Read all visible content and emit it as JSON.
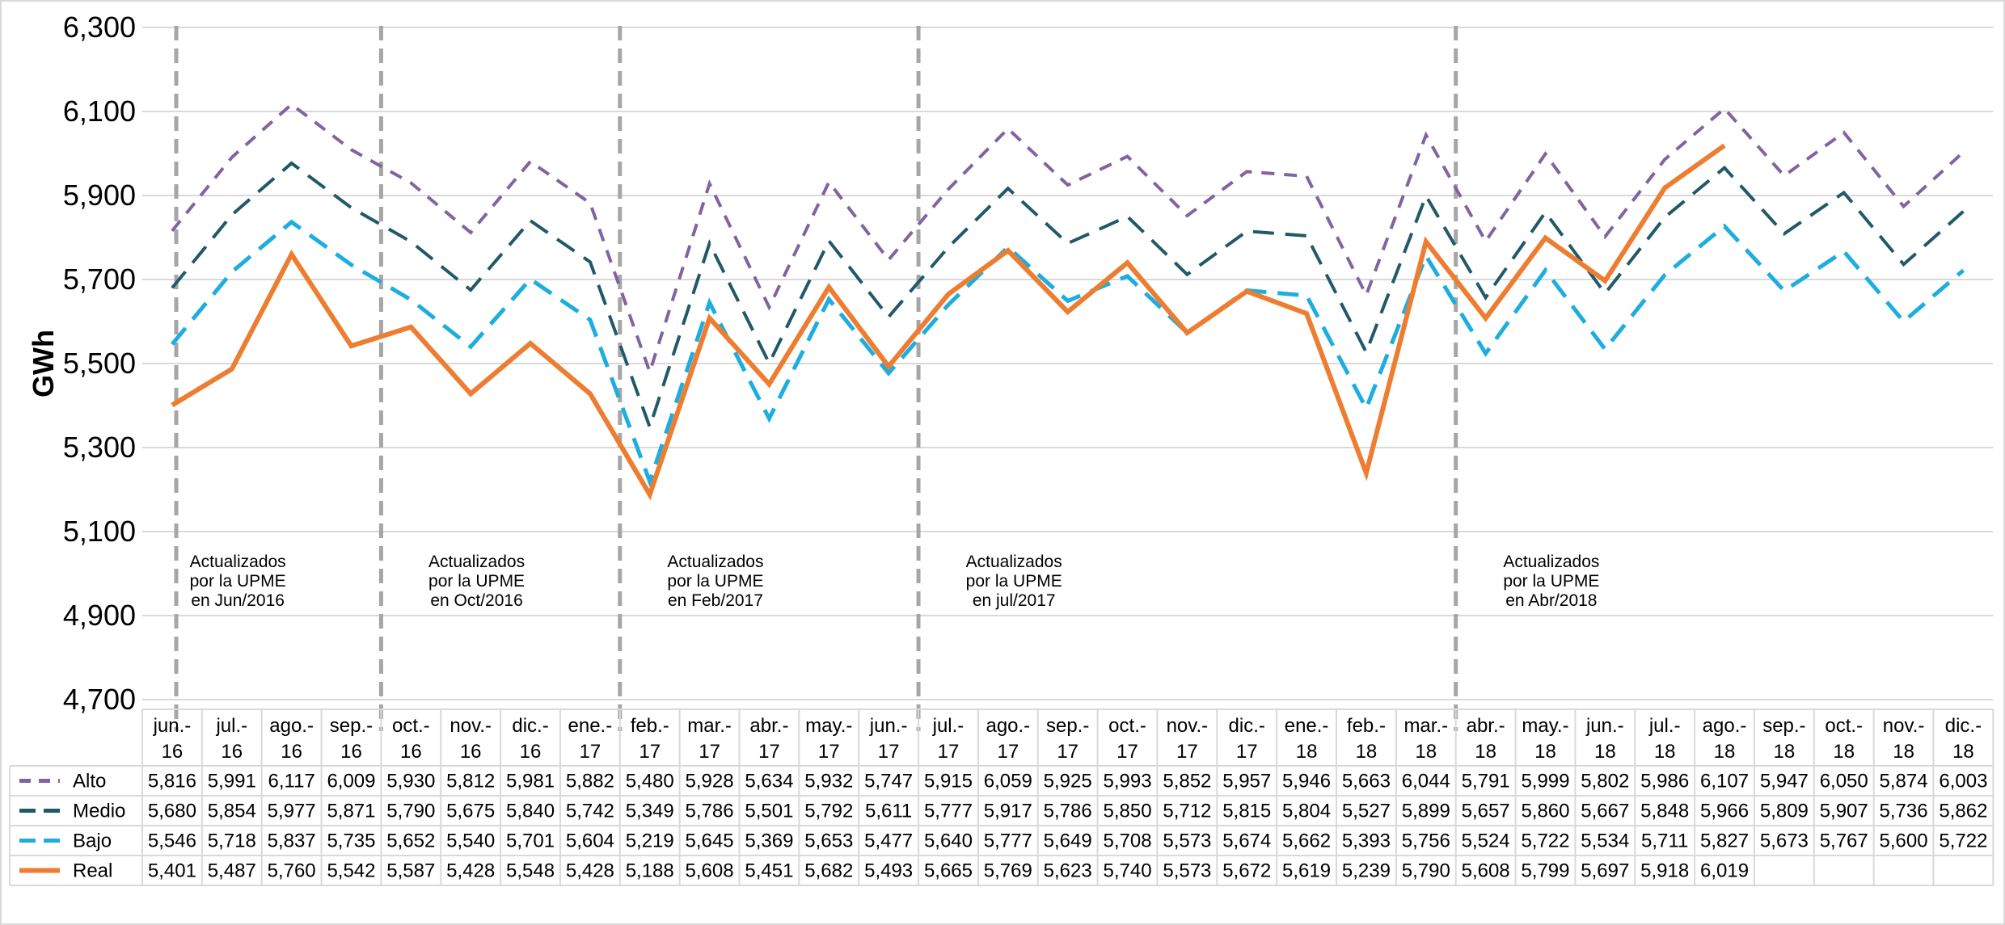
{
  "chart_data": {
    "type": "line",
    "title": "",
    "xlabel": "",
    "ylabel": "GWh",
    "ylim": [
      4700,
      6300
    ],
    "yticks": [
      "4,700",
      "4,900",
      "5,100",
      "5,300",
      "5,500",
      "5,700",
      "5,900",
      "6,100",
      "6,300"
    ],
    "ytick_values": [
      4700,
      4900,
      5100,
      5300,
      5500,
      5700,
      5900,
      6100,
      6300
    ],
    "grid": true,
    "legend": "data-table-left",
    "categories": [
      [
        "jun.-",
        "16"
      ],
      [
        "jul.-",
        "16"
      ],
      [
        "ago.-",
        "16"
      ],
      [
        "sep.-",
        "16"
      ],
      [
        "oct.-",
        "16"
      ],
      [
        "nov.-",
        "16"
      ],
      [
        "dic.-",
        "16"
      ],
      [
        "ene.-",
        "17"
      ],
      [
        "feb.-",
        "17"
      ],
      [
        "mar.-",
        "17"
      ],
      [
        "abr.-",
        "17"
      ],
      [
        "may.-",
        "17"
      ],
      [
        "jun.-",
        "17"
      ],
      [
        "jul.-",
        "17"
      ],
      [
        "ago.-",
        "17"
      ],
      [
        "sep.-",
        "17"
      ],
      [
        "oct.-",
        "17"
      ],
      [
        "nov.-",
        "17"
      ],
      [
        "dic.-",
        "17"
      ],
      [
        "ene.-",
        "18"
      ],
      [
        "feb.-",
        "18"
      ],
      [
        "mar.-",
        "18"
      ],
      [
        "abr.-",
        "18"
      ],
      [
        "may.-",
        "18"
      ],
      [
        "jun.-",
        "18"
      ],
      [
        "jul.-",
        "18"
      ],
      [
        "ago.-",
        "18"
      ],
      [
        "sep.-",
        "18"
      ],
      [
        "oct.-",
        "18"
      ],
      [
        "nov.-",
        "18"
      ],
      [
        "dic.-",
        "18"
      ]
    ],
    "series": [
      {
        "name": "Alto",
        "color": "#8064A2",
        "dash": "medium",
        "values": [
          5816,
          5991,
          6117,
          6009,
          5930,
          5812,
          5981,
          5882,
          5480,
          5928,
          5634,
          5932,
          5747,
          5915,
          6059,
          5925,
          5993,
          5852,
          5957,
          5946,
          5663,
          6044,
          5791,
          5999,
          5802,
          5986,
          6107,
          5947,
          6050,
          5874,
          6003
        ],
        "labels": [
          "5,816",
          "5,991",
          "6,117",
          "6,009",
          "5,930",
          "5,812",
          "5,981",
          "5,882",
          "5,480",
          "5,928",
          "5,634",
          "5,932",
          "5,747",
          "5,915",
          "6,059",
          "5,925",
          "5,993",
          "5,852",
          "5,957",
          "5,946",
          "5,663",
          "6,044",
          "5,791",
          "5,999",
          "5,802",
          "5,986",
          "6,107",
          "5,947",
          "6,050",
          "5,874",
          "6,003"
        ]
      },
      {
        "name": "Medio",
        "color": "#215968",
        "dash": "long",
        "values": [
          5680,
          5854,
          5977,
          5871,
          5790,
          5675,
          5840,
          5742,
          5349,
          5786,
          5501,
          5792,
          5611,
          5777,
          5917,
          5786,
          5850,
          5712,
          5815,
          5804,
          5527,
          5899,
          5657,
          5860,
          5667,
          5848,
          5966,
          5809,
          5907,
          5736,
          5862
        ],
        "labels": [
          "5,680",
          "5,854",
          "5,977",
          "5,871",
          "5,790",
          "5,675",
          "5,840",
          "5,742",
          "5,349",
          "5,786",
          "5,501",
          "5,792",
          "5,611",
          "5,777",
          "5,917",
          "5,786",
          "5,850",
          "5,712",
          "5,815",
          "5,804",
          "5,527",
          "5,899",
          "5,657",
          "5,860",
          "5,667",
          "5,848",
          "5,966",
          "5,809",
          "5,907",
          "5,736",
          "5,862"
        ]
      },
      {
        "name": "Bajo",
        "color": "#1DADDF",
        "dash": "long",
        "values": [
          5546,
          5718,
          5837,
          5735,
          5652,
          5540,
          5701,
          5604,
          5219,
          5645,
          5369,
          5653,
          5477,
          5640,
          5777,
          5649,
          5708,
          5573,
          5674,
          5662,
          5393,
          5756,
          5524,
          5722,
          5534,
          5711,
          5827,
          5673,
          5767,
          5600,
          5722
        ],
        "labels": [
          "5,546",
          "5,718",
          "5,837",
          "5,735",
          "5,652",
          "5,540",
          "5,701",
          "5,604",
          "5,219",
          "5,645",
          "5,369",
          "5,653",
          "5,477",
          "5,640",
          "5,777",
          "5,649",
          "5,708",
          "5,573",
          "5,674",
          "5,662",
          "5,393",
          "5,756",
          "5,524",
          "5,722",
          "5,534",
          "5,711",
          "5,827",
          "5,673",
          "5,767",
          "5,600",
          "5,722"
        ]
      },
      {
        "name": "Real",
        "color": "#ED7D31",
        "dash": "solid",
        "values": [
          5401,
          5487,
          5760,
          5542,
          5587,
          5428,
          5548,
          5428,
          5188,
          5608,
          5451,
          5682,
          5493,
          5665,
          5769,
          5623,
          5740,
          5573,
          5672,
          5619,
          5239,
          5790,
          5608,
          5799,
          5697,
          5918,
          6019,
          null,
          null,
          null,
          null
        ],
        "labels": [
          "5,401",
          "5,487",
          "5,760",
          "5,542",
          "5,587",
          "5,428",
          "5,548",
          "5,428",
          "5,188",
          "5,608",
          "5,451",
          "5,682",
          "5,493",
          "5,665",
          "5,769",
          "5,623",
          "5,740",
          "5,573",
          "5,672",
          "5,619",
          "5,239",
          "5,790",
          "5,608",
          "5,799",
          "5,697",
          "5,918",
          "6,019",
          "",
          "",
          "",
          ""
        ]
      }
    ],
    "annotations": [
      {
        "index": 0,
        "lines": [
          "Actualizados",
          "por la UPME",
          "en Jun/2016"
        ]
      },
      {
        "index": 4,
        "lines": [
          "Actualizados",
          "por la UPME",
          "en Oct/2016"
        ]
      },
      {
        "index": 8,
        "lines": [
          "Actualizados",
          "por la UPME",
          "en Feb/2017"
        ]
      },
      {
        "index": 13,
        "lines": [
          "Actualizados",
          "por la UPME",
          "en jul/2017"
        ]
      },
      {
        "index": 22,
        "lines": [
          "Actualizados",
          "por la UPME",
          "en Abr/2018"
        ]
      }
    ]
  }
}
